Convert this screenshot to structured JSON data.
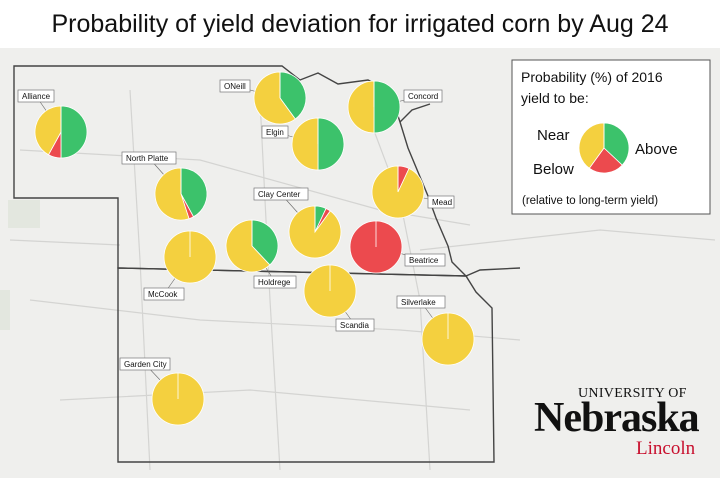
{
  "title": "Probability of yield deviation for irrigated corn by Aug 24",
  "colors": {
    "near": "#f4d03f",
    "above": "#3cc26b",
    "below": "#ec4a4e",
    "border": "#444444",
    "water": "#cfe3ee",
    "land": "#efefed"
  },
  "legend": {
    "title_line1": "Probability (%) of 2016",
    "title_line2": "yield to be:",
    "near": "Near",
    "above": "Above",
    "below": "Below",
    "note": "(relative to long-term yield)",
    "sample": {
      "near": 40,
      "above": 37,
      "below": 23
    }
  },
  "sites": [
    {
      "name": "Alliance",
      "near": 42,
      "below": 8,
      "above": 50
    },
    {
      "name": "ONeill",
      "near": 60,
      "below": 0,
      "above": 40
    },
    {
      "name": "Concord",
      "near": 50,
      "below": 0,
      "above": 50
    },
    {
      "name": "Elgin",
      "near": 50,
      "below": 0,
      "above": 50
    },
    {
      "name": "North Platte",
      "near": 55,
      "below": 3,
      "above": 42
    },
    {
      "name": "Mead",
      "near": 93,
      "below": 7,
      "above": 0
    },
    {
      "name": "Clay Center",
      "near": 90,
      "below": 3,
      "above": 7
    },
    {
      "name": "McCook",
      "near": 100,
      "below": 0,
      "above": 0
    },
    {
      "name": "Holdrege",
      "near": 62,
      "below": 0,
      "above": 38
    },
    {
      "name": "Beatrice",
      "near": 0,
      "below": 100,
      "above": 0
    },
    {
      "name": "Scandia",
      "near": 100,
      "below": 0,
      "above": 0
    },
    {
      "name": "Silverlake",
      "near": 100,
      "below": 0,
      "above": 0
    },
    {
      "name": "Garden City",
      "near": 100,
      "below": 0,
      "above": 0
    }
  ],
  "logo": {
    "university": "UNIVERSITY OF",
    "name": "Nebraska",
    "campus": "Lincoln"
  }
}
